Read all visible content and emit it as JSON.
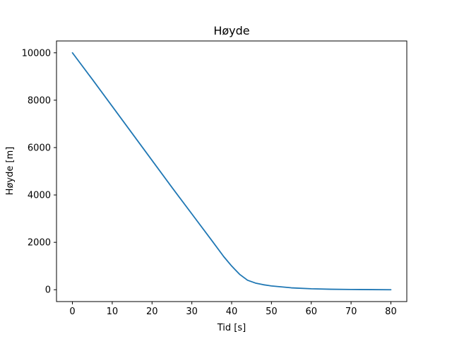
{
  "chart_data": {
    "type": "line",
    "title": "Høyde",
    "xlabel": "Tid [s]",
    "ylabel": "Høyde [m]",
    "xlim": [
      -4,
      84
    ],
    "ylim": [
      -500,
      10500
    ],
    "xticks": [
      0,
      10,
      20,
      30,
      40,
      50,
      60,
      70,
      80
    ],
    "yticks": [
      0,
      2000,
      4000,
      6000,
      8000,
      10000
    ],
    "grid": false,
    "series": [
      {
        "color": "#1f77b4",
        "x": [
          0,
          5,
          10,
          15,
          20,
          25,
          30,
          35,
          38,
          40,
          42,
          44,
          46,
          48,
          50,
          55,
          60,
          65,
          70,
          75,
          80
        ],
        "y": [
          10000,
          8880,
          7740,
          6600,
          5460,
          4320,
          3200,
          2080,
          1400,
          1000,
          650,
          400,
          280,
          210,
          160,
          80,
          40,
          20,
          10,
          5,
          0
        ]
      }
    ]
  }
}
